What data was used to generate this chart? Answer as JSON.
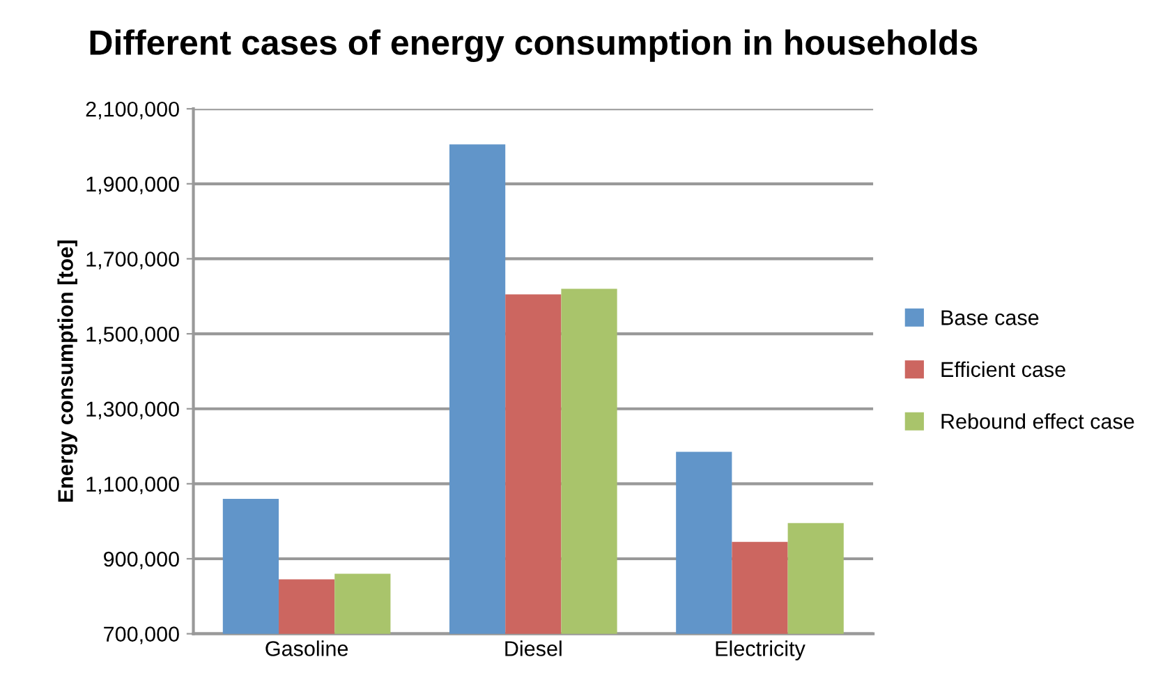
{
  "chart_data": {
    "type": "bar",
    "title": "Different cases of energy consumption in households",
    "ylabel": "Energy consumption [toe]",
    "categories": [
      "Gasoline",
      "Diesel",
      "Electricity"
    ],
    "series": [
      {
        "name": "Base case",
        "color": "#6195c9",
        "values": [
          1060000,
          2005000,
          1185000
        ]
      },
      {
        "name": "Efficient case",
        "color": "#cc6660",
        "values": [
          845000,
          1605000,
          945000
        ]
      },
      {
        "name": "Rebound effect case",
        "color": "#a9c46b",
        "values": [
          860000,
          1620000,
          995000
        ]
      }
    ],
    "ylim": [
      700000,
      2100000
    ],
    "yticks": [
      {
        "value": 700000,
        "label": "700,000"
      },
      {
        "value": 900000,
        "label": "900,000"
      },
      {
        "value": 1100000,
        "label": "1,100,000"
      },
      {
        "value": 1300000,
        "label": "1,300,000"
      },
      {
        "value": 1500000,
        "label": "1,500,000"
      },
      {
        "value": 1700000,
        "label": "1,700,000"
      },
      {
        "value": 1900000,
        "label": "1,900,000"
      },
      {
        "value": 2100000,
        "label": "2,100,000"
      }
    ],
    "grid": "y",
    "legend": "right"
  }
}
